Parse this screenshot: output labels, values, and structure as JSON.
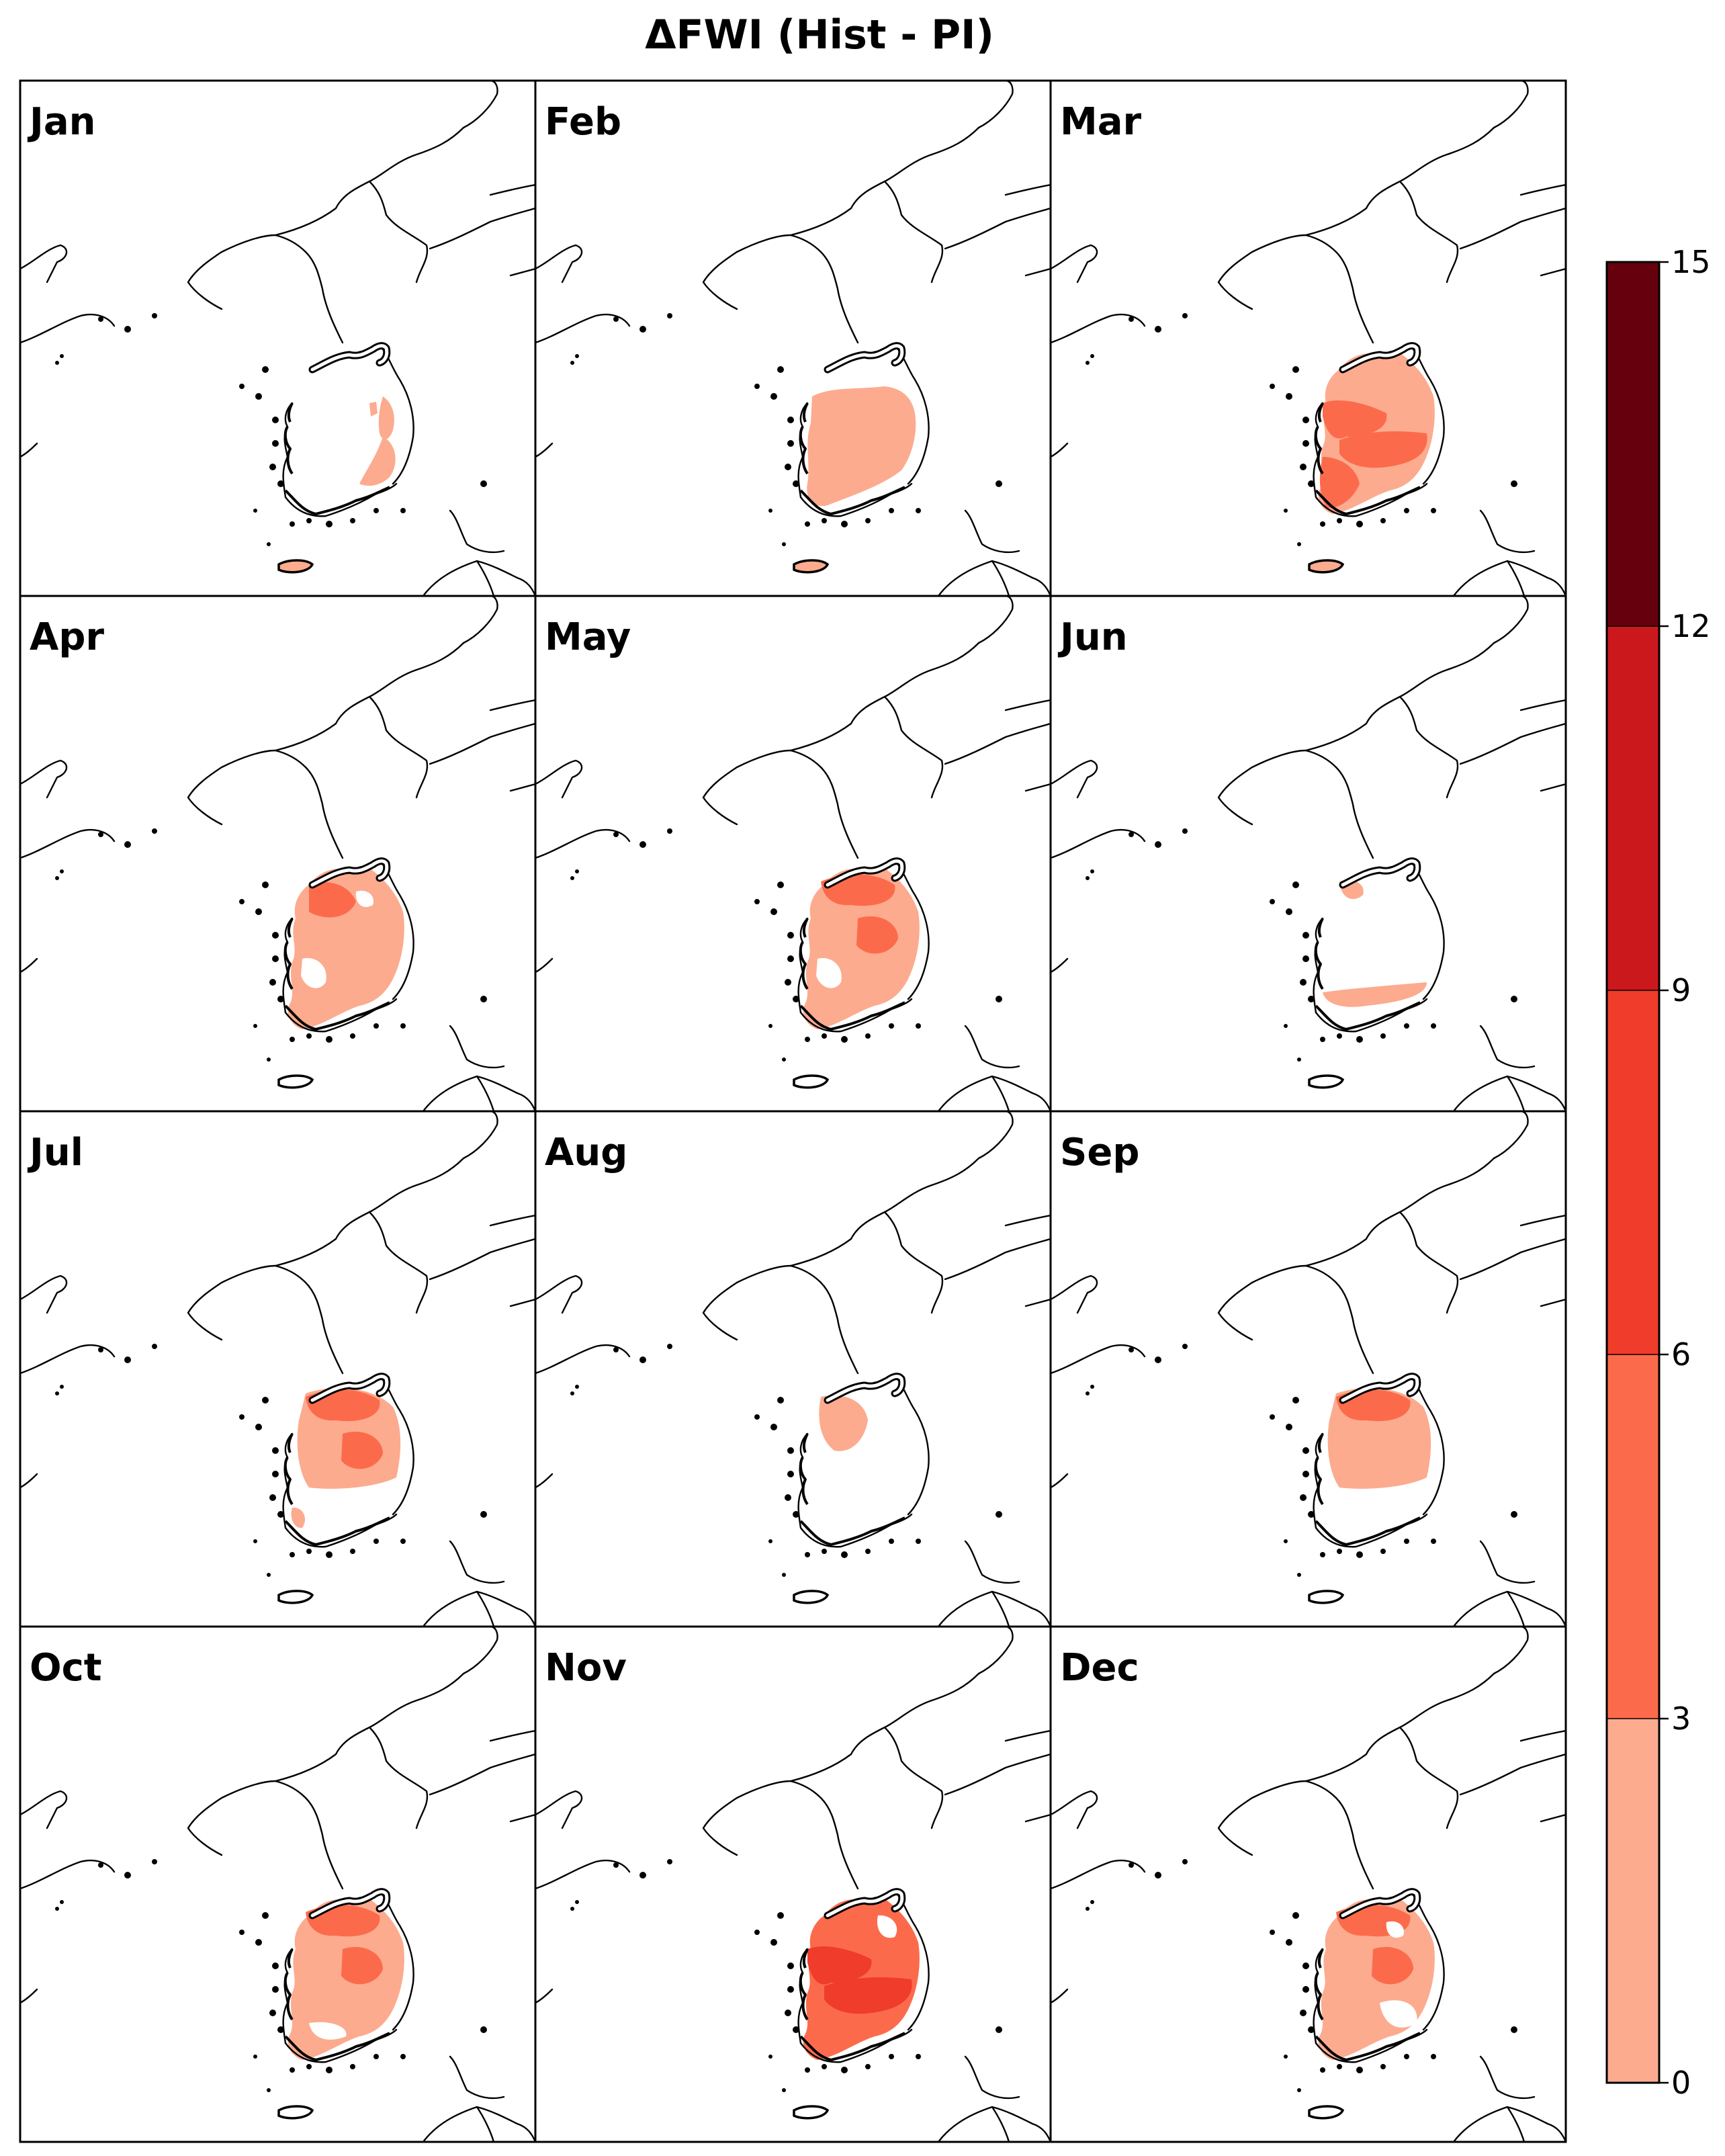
{
  "title": "ΔFWI (Hist - PI)",
  "panels": [
    {
      "label": "Jan",
      "fill": [
        {
          "shape": "east_coast_south",
          "class": 1
        },
        {
          "shape": "southeast_coast",
          "class": 1
        },
        {
          "shape": "inland_speck",
          "class": 1
        },
        {
          "shape": "jeju",
          "class": 1
        }
      ]
    },
    {
      "label": "Feb",
      "fill": [
        {
          "shape": "south_half",
          "class": 1
        },
        {
          "shape": "jeju",
          "class": 1
        }
      ]
    },
    {
      "label": "Mar",
      "fill": [
        {
          "shape": "peninsula",
          "class": 1
        },
        {
          "shape": "west_band",
          "class": 2
        },
        {
          "shape": "central_band",
          "class": 2
        },
        {
          "shape": "southwest_area",
          "class": 2
        },
        {
          "shape": "jeju",
          "class": 1
        }
      ]
    },
    {
      "label": "Apr",
      "fill": [
        {
          "shape": "peninsula",
          "class": 1
        },
        {
          "shape": "northwest_area",
          "class": 2
        },
        {
          "shape": "hole_west",
          "class": 0
        },
        {
          "shape": "hole_north",
          "class": 0
        }
      ]
    },
    {
      "label": "May",
      "fill": [
        {
          "shape": "peninsula",
          "class": 1
        },
        {
          "shape": "north_band",
          "class": 2
        },
        {
          "shape": "central_blob",
          "class": 2
        },
        {
          "shape": "hole_west",
          "class": 0
        }
      ]
    },
    {
      "label": "Jun",
      "fill": [
        {
          "shape": "northwest_speck",
          "class": 1
        },
        {
          "shape": "south_strip",
          "class": 1
        }
      ]
    },
    {
      "label": "Jul",
      "fill": [
        {
          "shape": "upper_two_thirds",
          "class": 1
        },
        {
          "shape": "north_band",
          "class": 2
        },
        {
          "shape": "central_blob",
          "class": 2
        },
        {
          "shape": "southwest_speck",
          "class": 1
        }
      ]
    },
    {
      "label": "Aug",
      "fill": [
        {
          "shape": "northwest_blob",
          "class": 1
        }
      ]
    },
    {
      "label": "Sep",
      "fill": [
        {
          "shape": "upper_two_thirds",
          "class": 1
        },
        {
          "shape": "north_band",
          "class": 2
        }
      ]
    },
    {
      "label": "Oct",
      "fill": [
        {
          "shape": "peninsula",
          "class": 1
        },
        {
          "shape": "north_band",
          "class": 2
        },
        {
          "shape": "central_blob",
          "class": 2
        },
        {
          "shape": "hole_south",
          "class": 0
        }
      ]
    },
    {
      "label": "Nov",
      "fill": [
        {
          "shape": "peninsula",
          "class": 2
        },
        {
          "shape": "west_band",
          "class": 3
        },
        {
          "shape": "central_band",
          "class": 3
        },
        {
          "shape": "hole_northeast",
          "class": 0
        }
      ]
    },
    {
      "label": "Dec",
      "fill": [
        {
          "shape": "peninsula",
          "class": 1
        },
        {
          "shape": "north_band",
          "class": 2
        },
        {
          "shape": "central_blob",
          "class": 2
        },
        {
          "shape": "hole_southeast",
          "class": 0
        },
        {
          "shape": "hole_north",
          "class": 0
        }
      ]
    }
  ],
  "colorbar": {
    "ticks": [
      "0",
      "3",
      "6",
      "9",
      "12",
      "15"
    ],
    "bounds": [
      0,
      3,
      6,
      9,
      12,
      15
    ],
    "colors": [
      "#fcab8f",
      "#fb6b4b",
      "#f03c2b",
      "#cb181d",
      "#67000d"
    ]
  }
}
